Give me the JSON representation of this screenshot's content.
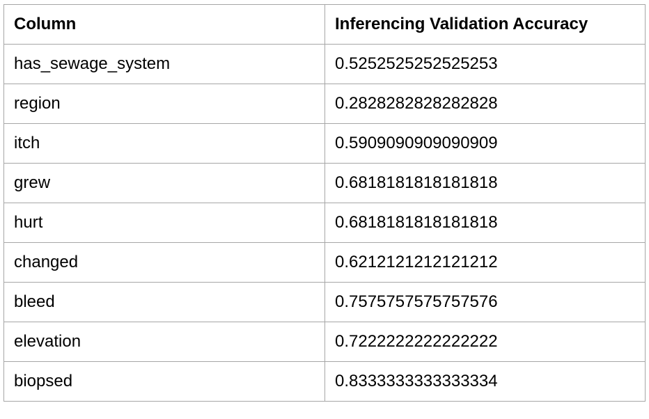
{
  "table": {
    "headers": [
      "Column",
      "Inferencing Validation Accuracy"
    ],
    "rows": [
      [
        "has_sewage_system",
        "0.5252525252525253"
      ],
      [
        "region",
        "0.2828282828282828"
      ],
      [
        "itch",
        "0.5909090909090909"
      ],
      [
        "grew",
        "0.6818181818181818"
      ],
      [
        "hurt",
        "0.6818181818181818"
      ],
      [
        "changed",
        "0.6212121212121212"
      ],
      [
        "bleed",
        "0.7575757575757576"
      ],
      [
        "elevation",
        "0.7222222222222222"
      ],
      [
        "biopsed",
        "0.8333333333333334"
      ]
    ]
  },
  "colors": {
    "border": "#a6a6a6",
    "background": "#ffffff",
    "text": "#000000"
  }
}
